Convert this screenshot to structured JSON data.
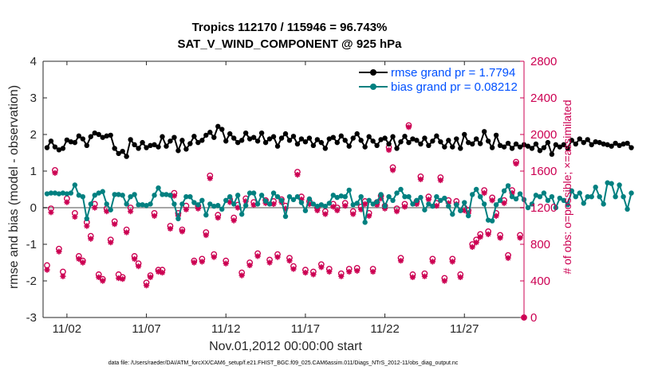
{
  "chart_data": {
    "type": "line",
    "title_line1": "Tropics 112170 / 115946 = 96.743%",
    "title_line2": "SAT_V_WIND_COMPONENT @ 925 hPa",
    "xlabel": "Nov.01,2012 00:00:00 start",
    "ylabel_left": "rmse and bias (model - observation)",
    "ylabel_right": "# of obs: o=possible; ×=assimilated",
    "footnote": "data file: /Users/raeder/DAI/ATM_forcXX/CAM6_setup/f.e21.FHIST_BGC.f09_025.CAM6assim.011/Diags_NTrS_2012-11/obs_diag_output.nc",
    "xlim": [
      0.5,
      30.75
    ],
    "ylim_left": [
      -3,
      4
    ],
    "ylim_right": [
      0,
      2800
    ],
    "x_ticks": [
      2,
      7,
      12,
      17,
      22,
      27
    ],
    "x_tick_labels": [
      "11/02",
      "11/07",
      "11/12",
      "11/17",
      "11/22",
      "11/27"
    ],
    "y_left_ticks": [
      -3,
      -2,
      -1,
      0,
      1,
      2,
      3,
      4
    ],
    "y_left_tick_labels": [
      "-3",
      "-2",
      "-1",
      "0",
      "1",
      "2",
      "3",
      "4"
    ],
    "y_right_ticks": [
      0,
      400,
      800,
      1200,
      1600,
      2000,
      2400,
      2800
    ],
    "y_right_tick_labels": [
      "0",
      "400",
      "800",
      "1200",
      "1600",
      "2000",
      "2400",
      "2800"
    ],
    "legend": [
      {
        "label": "rmse grand pr = 1.7794",
        "color": "#000000"
      },
      {
        "label": "bias grand pr = 0.08212",
        "color": "#008080"
      }
    ],
    "x_start": 0.75,
    "x_step": 0.25,
    "rmse": [
      1.64,
      1.82,
      1.66,
      1.58,
      1.62,
      1.85,
      1.8,
      1.78,
      1.96,
      1.88,
      1.7,
      1.94,
      2.04,
      2.0,
      1.92,
      1.96,
      1.98,
      1.62,
      1.48,
      1.54,
      1.4,
      1.86,
      1.72,
      1.62,
      1.78,
      1.64,
      1.7,
      1.72,
      1.66,
      1.94,
      1.68,
      1.82,
      1.92,
      1.56,
      1.84,
      1.6,
      1.75,
      1.95,
      1.78,
      1.84,
      1.98,
      2.06,
      1.92,
      2.22,
      2.14,
      1.82,
      2.02,
      1.9,
      1.78,
      1.84,
      2.04,
      1.88,
      1.92,
      1.82,
      2.04,
      1.78,
      1.88,
      1.94,
      1.68,
      1.9,
      2.02,
      1.84,
      1.95,
      1.74,
      1.88,
      1.8,
      1.9,
      1.7,
      1.86,
      1.78,
      1.62,
      1.88,
      1.92,
      1.78,
      1.96,
      1.84,
      1.68,
      1.9,
      2.02,
      1.84,
      1.66,
      1.94,
      1.82,
      1.7,
      1.86,
      1.9,
      1.74,
      1.94,
      1.62,
      1.8,
      1.95,
      1.78,
      1.88,
      1.84,
      1.74,
      1.9,
      1.7,
      1.82,
      1.96,
      1.8,
      1.66,
      1.84,
      1.66,
      1.88,
      1.62,
      2.0,
      1.78,
      1.74,
      1.88,
      1.75,
      2.08,
      1.82,
      1.64,
      1.98,
      1.7,
      1.66,
      1.76,
      1.62,
      1.74,
      1.66,
      1.72,
      1.68,
      1.62,
      1.74,
      1.56,
      1.64,
      1.78,
      1.46,
      1.72,
      1.66,
      1.72,
      1.62,
      1.84,
      1.74,
      1.88,
      1.78,
      1.86,
      1.72,
      1.8,
      1.78,
      1.74,
      1.72,
      1.68,
      1.76,
      1.7,
      1.74,
      1.76,
      1.64
    ],
    "bias": [
      0.38,
      0.4,
      0.4,
      0.38,
      0.4,
      0.38,
      0.4,
      0.62,
      0.34,
      0.3,
      -0.3,
      0.1,
      0.34,
      0.4,
      0.44,
      0.1,
      -0.06,
      0.36,
      0.36,
      0.34,
      0.1,
      0.3,
      0.36,
      0.08,
      0.08,
      0.06,
      0.1,
      0.34,
      0.54,
      0.36,
      0.36,
      0.34,
      0.1,
      -0.3,
      0.1,
      0.3,
      0.3,
      0.14,
      0.08,
      0.2,
      -0.2,
      0.1,
      0.04,
      0.06,
      -0.04,
      0.2,
      0.3,
      0.1,
      0.34,
      -0.18,
      0.06,
      0.4,
      0.4,
      0.1,
      0.34,
      0.18,
      0.1,
      0.4,
      0.3,
      0.2,
      -0.24,
      0.3,
      0.22,
      0.3,
      0.14,
      -0.08,
      0.24,
      0.1,
      0.04,
      0.08,
      0.04,
      0.12,
      0.34,
      0.28,
      0.32,
      0.3,
      0.48,
      0.08,
      0.12,
      0.3,
      -0.4,
      0.2,
      0.1,
      0.16,
      0.36,
      0.04,
      0.3,
      0.2,
      0.4,
      0.5,
      0.3,
      0.3,
      0.1,
      0.2,
      0.28,
      -0.06,
      0.1,
      0.04,
      0.3,
      0.2,
      0.26,
      0.04,
      -0.18,
      0.08,
      -0.08,
      0.14,
      -0.22,
      0.36,
      0.5,
      0.3,
      0.1,
      -0.34,
      -0.36,
      0.08,
      0.2,
      0.46,
      0.6,
      0.3,
      0.24,
      0.38,
      0.22,
      0.0,
      0.1,
      0.34,
      0.3,
      0.4,
      0.2,
      0.3,
      0.0,
      0.26,
      0.2,
      0.08,
      0.46,
      0.3,
      0.4,
      0.12,
      0.3,
      0.3,
      0.56,
      0.3,
      0.1,
      0.68,
      0.66,
      0.3,
      0.62,
      0.3,
      -0.04,
      0.4
    ],
    "obs_samples": [
      {
        "x": 0.75,
        "possible": 570,
        "assimilated": 520
      },
      {
        "x": 1.0,
        "possible": 1190,
        "assimilated": 1150
      },
      {
        "x": 1.25,
        "possible": 1610,
        "assimilated": 1580
      },
      {
        "x": 1.5,
        "possible": 750,
        "assimilated": 720
      },
      {
        "x": 1.75,
        "possible": 500,
        "assimilated": 450
      },
      {
        "x": 2.0,
        "possible": 1300,
        "assimilated": 1260
      },
      {
        "x": 2.5,
        "possible": 1140,
        "assimilated": 1100
      },
      {
        "x": 2.75,
        "possible": 670,
        "assimilated": 640
      },
      {
        "x": 3.0,
        "possible": 620,
        "assimilated": 600
      },
      {
        "x": 3.25,
        "possible": 1040,
        "assimilated": 1000
      },
      {
        "x": 3.5,
        "possible": 890,
        "assimilated": 860
      },
      {
        "x": 3.75,
        "possible": 1240,
        "assimilated": 1200
      },
      {
        "x": 4.0,
        "possible": 470,
        "assimilated": 440
      },
      {
        "x": 4.25,
        "possible": 420,
        "assimilated": 400
      },
      {
        "x": 4.5,
        "possible": 1190,
        "assimilated": 1160
      },
      {
        "x": 4.75,
        "possible": 850,
        "assimilated": 820
      },
      {
        "x": 5.0,
        "possible": 1050,
        "assimilated": 1020
      },
      {
        "x": 5.25,
        "possible": 470,
        "assimilated": 430
      },
      {
        "x": 5.5,
        "possible": 440,
        "assimilated": 420
      },
      {
        "x": 5.75,
        "possible": 960,
        "assimilated": 930
      },
      {
        "x": 6.0,
        "possible": 1200,
        "assimilated": 1160
      },
      {
        "x": 6.25,
        "possible": 670,
        "assimilated": 640
      },
      {
        "x": 6.5,
        "possible": 590,
        "assimilated": 560
      },
      {
        "x": 7.0,
        "possible": 380,
        "assimilated": 350
      },
      {
        "x": 7.25,
        "possible": 460,
        "assimilated": 440
      },
      {
        "x": 7.5,
        "possible": 1140,
        "assimilated": 1110
      },
      {
        "x": 7.75,
        "possible": 520,
        "assimilated": 500
      },
      {
        "x": 8.0,
        "possible": 520,
        "assimilated": 490
      },
      {
        "x": 8.5,
        "possible": 1000,
        "assimilated": 970
      },
      {
        "x": 8.75,
        "possible": 1360,
        "assimilated": 1330
      },
      {
        "x": 9.0,
        "possible": 1140,
        "assimilated": 1110
      },
      {
        "x": 9.25,
        "possible": 960,
        "assimilated": 940
      },
      {
        "x": 9.5,
        "possible": 1220,
        "assimilated": 1180
      },
      {
        "x": 10.0,
        "possible": 620,
        "assimilated": 600
      },
      {
        "x": 10.25,
        "possible": 1220,
        "assimilated": 1190
      },
      {
        "x": 10.5,
        "possible": 640,
        "assimilated": 610
      },
      {
        "x": 10.75,
        "possible": 930,
        "assimilated": 900
      },
      {
        "x": 11.0,
        "possible": 1550,
        "assimilated": 1520
      },
      {
        "x": 11.25,
        "possible": 690,
        "assimilated": 660
      },
      {
        "x": 11.5,
        "possible": 1120,
        "assimilated": 1090
      },
      {
        "x": 12.0,
        "possible": 620,
        "assimilated": 590
      },
      {
        "x": 12.25,
        "possible": 1290,
        "assimilated": 1260
      },
      {
        "x": 12.5,
        "possible": 1090,
        "assimilated": 1060
      },
      {
        "x": 12.75,
        "possible": 1230,
        "assimilated": 1200
      },
      {
        "x": 13.0,
        "possible": 490,
        "assimilated": 460
      },
      {
        "x": 13.25,
        "possible": 1300,
        "assimilated": 1270
      },
      {
        "x": 13.5,
        "possible": 600,
        "assimilated": 570
      },
      {
        "x": 13.75,
        "possible": 1260,
        "assimilated": 1230
      },
      {
        "x": 14.0,
        "possible": 700,
        "assimilated": 670
      },
      {
        "x": 14.5,
        "possible": 1280,
        "assimilated": 1250
      },
      {
        "x": 14.75,
        "possible": 630,
        "assimilated": 600
      },
      {
        "x": 15.0,
        "possible": 1270,
        "assimilated": 1240
      },
      {
        "x": 15.25,
        "possible": 690,
        "assimilated": 660
      },
      {
        "x": 15.5,
        "possible": 1290,
        "assimilated": 1260
      },
      {
        "x": 15.75,
        "possible": 1220,
        "assimilated": 1190
      },
      {
        "x": 16.0,
        "possible": 650,
        "assimilated": 620
      },
      {
        "x": 16.25,
        "possible": 560,
        "assimilated": 530
      },
      {
        "x": 16.5,
        "possible": 1590,
        "assimilated": 1560
      },
      {
        "x": 16.75,
        "possible": 1320,
        "assimilated": 1290
      },
      {
        "x": 17.0,
        "possible": 520,
        "assimilated": 490
      },
      {
        "x": 17.25,
        "possible": 1270,
        "assimilated": 1240
      },
      {
        "x": 17.5,
        "possible": 500,
        "assimilated": 470
      },
      {
        "x": 17.75,
        "possible": 1200,
        "assimilated": 1170
      },
      {
        "x": 18.0,
        "possible": 580,
        "assimilated": 550
      },
      {
        "x": 18.25,
        "possible": 1160,
        "assimilated": 1130
      },
      {
        "x": 18.5,
        "possible": 530,
        "assimilated": 500
      },
      {
        "x": 18.75,
        "possible": 1240,
        "assimilated": 1210
      },
      {
        "x": 19.0,
        "possible": 1200,
        "assimilated": 1170
      },
      {
        "x": 19.25,
        "possible": 480,
        "assimilated": 450
      },
      {
        "x": 19.5,
        "possible": 1250,
        "assimilated": 1220
      },
      {
        "x": 19.75,
        "possible": 530,
        "assimilated": 500
      },
      {
        "x": 20.0,
        "possible": 1160,
        "assimilated": 1130
      },
      {
        "x": 20.25,
        "possible": 540,
        "assimilated": 510
      },
      {
        "x": 20.5,
        "possible": 1210,
        "assimilated": 1180
      },
      {
        "x": 20.75,
        "possible": 1270,
        "assimilated": 1240
      },
      {
        "x": 21.0,
        "possible": 1140,
        "assimilated": 1110
      },
      {
        "x": 21.25,
        "possible": 530,
        "assimilated": 500
      },
      {
        "x": 21.5,
        "possible": 1260,
        "assimilated": 1230
      },
      {
        "x": 21.75,
        "possible": 1330,
        "assimilated": 1300
      },
      {
        "x": 22.0,
        "possible": 1220,
        "assimilated": 1190
      },
      {
        "x": 22.25,
        "possible": 1860,
        "assimilated": 1830
      },
      {
        "x": 22.5,
        "possible": 1640,
        "assimilated": 1610
      },
      {
        "x": 22.75,
        "possible": 1190,
        "assimilated": 1160
      },
      {
        "x": 23.0,
        "possible": 650,
        "assimilated": 620
      },
      {
        "x": 23.25,
        "possible": 1240,
        "assimilated": 1210
      },
      {
        "x": 23.5,
        "possible": 2100,
        "assimilated": 2080
      },
      {
        "x": 23.75,
        "possible": 470,
        "assimilated": 440
      },
      {
        "x": 24.0,
        "possible": 1270,
        "assimilated": 1240
      },
      {
        "x": 24.25,
        "possible": 1540,
        "assimilated": 1510
      },
      {
        "x": 24.5,
        "possible": 480,
        "assimilated": 450
      },
      {
        "x": 24.75,
        "possible": 1320,
        "assimilated": 1290
      },
      {
        "x": 25.0,
        "possible": 640,
        "assimilated": 610
      },
      {
        "x": 25.25,
        "possible": 1250,
        "assimilated": 1220
      },
      {
        "x": 25.5,
        "possible": 1530,
        "assimilated": 1500
      },
      {
        "x": 25.75,
        "possible": 430,
        "assimilated": 400
      },
      {
        "x": 26.0,
        "possible": 1280,
        "assimilated": 1250
      },
      {
        "x": 26.25,
        "possible": 640,
        "assimilated": 610
      },
      {
        "x": 26.5,
        "possible": 1270,
        "assimilated": 1240
      },
      {
        "x": 26.75,
        "possible": 470,
        "assimilated": 440
      },
      {
        "x": 27.0,
        "possible": 1200,
        "assimilated": 1170
      },
      {
        "x": 27.25,
        "possible": 1170,
        "assimilated": 1140
      },
      {
        "x": 27.5,
        "possible": 800,
        "assimilated": 770
      },
      {
        "x": 27.75,
        "possible": 850,
        "assimilated": 820
      },
      {
        "x": 28.0,
        "possible": 910,
        "assimilated": 880
      },
      {
        "x": 28.25,
        "possible": 1390,
        "assimilated": 1360
      },
      {
        "x": 28.5,
        "possible": 940,
        "assimilated": 910
      },
      {
        "x": 28.75,
        "possible": 1310,
        "assimilated": 1280
      },
      {
        "x": 29.0,
        "possible": 1140,
        "assimilated": 1110
      },
      {
        "x": 29.25,
        "possible": 900,
        "assimilated": 870
      },
      {
        "x": 29.5,
        "possible": 1280,
        "assimilated": 1250
      },
      {
        "x": 29.75,
        "possible": 680,
        "assimilated": 650
      },
      {
        "x": 30.0,
        "possible": 1390,
        "assimilated": 1360
      },
      {
        "x": 30.25,
        "possible": 1700,
        "assimilated": 1680
      },
      {
        "x": 30.5,
        "possible": 900,
        "assimilated": 870
      },
      {
        "x": 30.75,
        "possible": 0,
        "assimilated": 0
      }
    ]
  },
  "colors": {
    "rmse": "#000000",
    "bias": "#008080",
    "obs": "#cc0052",
    "zero_line": "#a6a6a6",
    "legend_text": "#0050ff"
  }
}
